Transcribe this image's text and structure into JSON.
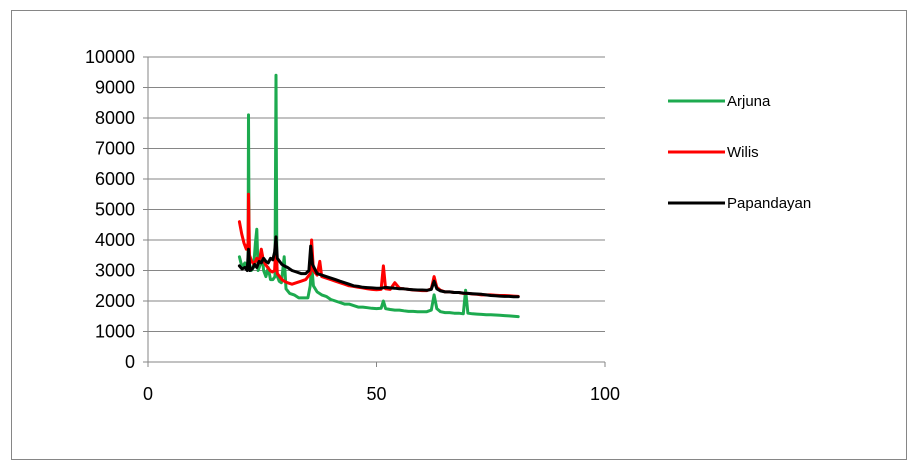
{
  "chart_data": {
    "type": "line",
    "title": "",
    "xlabel": "",
    "ylabel": "",
    "xlim": [
      0,
      100
    ],
    "ylim": [
      0,
      10000
    ],
    "x_ticks": [
      0,
      50,
      100
    ],
    "y_ticks": [
      0,
      1000,
      2000,
      3000,
      4000,
      5000,
      6000,
      7000,
      8000,
      9000,
      10000
    ],
    "grid": "horizontal",
    "legend_position": "right",
    "series": [
      {
        "name": "Arjuna",
        "color": "#1daa4f",
        "points": [
          [
            20,
            3450
          ],
          [
            20.6,
            3100
          ],
          [
            21.2,
            3250
          ],
          [
            21.6,
            3050
          ],
          [
            21.9,
            3300
          ],
          [
            22,
            8100
          ],
          [
            22.15,
            3250
          ],
          [
            22.6,
            3000
          ],
          [
            23.1,
            3100
          ],
          [
            23.5,
            3900
          ],
          [
            23.8,
            4350
          ],
          [
            24.1,
            3000
          ],
          [
            24.6,
            3200
          ],
          [
            25.0,
            3500
          ],
          [
            25.3,
            3000
          ],
          [
            25.8,
            2800
          ],
          [
            26.3,
            3100
          ],
          [
            26.8,
            2700
          ],
          [
            27.3,
            2700
          ],
          [
            27.8,
            2800
          ],
          [
            28,
            9400
          ],
          [
            28.2,
            2850
          ],
          [
            28.7,
            2650
          ],
          [
            29.2,
            2600
          ],
          [
            29.8,
            3450
          ],
          [
            30.2,
            2400
          ],
          [
            31,
            2250
          ],
          [
            32,
            2200
          ],
          [
            33,
            2100
          ],
          [
            34,
            2100
          ],
          [
            35,
            2100
          ],
          [
            35.5,
            2500
          ],
          [
            35.8,
            3200
          ],
          [
            36.2,
            2500
          ],
          [
            37,
            2300
          ],
          [
            38,
            2200
          ],
          [
            39,
            2150
          ],
          [
            40,
            2050
          ],
          [
            41,
            2000
          ],
          [
            42,
            1950
          ],
          [
            43,
            1900
          ],
          [
            44,
            1900
          ],
          [
            45,
            1850
          ],
          [
            46,
            1800
          ],
          [
            47,
            1800
          ],
          [
            48,
            1780
          ],
          [
            49,
            1760
          ],
          [
            50,
            1750
          ],
          [
            51,
            1760
          ],
          [
            51.5,
            2000
          ],
          [
            52,
            1750
          ],
          [
            53,
            1720
          ],
          [
            54,
            1700
          ],
          [
            55,
            1700
          ],
          [
            56,
            1680
          ],
          [
            57,
            1660
          ],
          [
            58,
            1660
          ],
          [
            59,
            1650
          ],
          [
            60,
            1650
          ],
          [
            61,
            1650
          ],
          [
            62,
            1700
          ],
          [
            62.6,
            2200
          ],
          [
            63.2,
            1750
          ],
          [
            64,
            1650
          ],
          [
            65,
            1620
          ],
          [
            66,
            1620
          ],
          [
            67,
            1600
          ],
          [
            68,
            1600
          ],
          [
            69,
            1580
          ],
          [
            69.5,
            2350
          ],
          [
            70,
            1600
          ],
          [
            71,
            1580
          ],
          [
            72,
            1570
          ],
          [
            73,
            1560
          ],
          [
            74,
            1550
          ],
          [
            75,
            1550
          ],
          [
            76,
            1540
          ],
          [
            77,
            1530
          ],
          [
            78,
            1520
          ],
          [
            79,
            1510
          ],
          [
            80,
            1500
          ],
          [
            81,
            1490
          ]
        ]
      },
      {
        "name": "Wilis",
        "color": "#ff0000",
        "points": [
          [
            20,
            4600
          ],
          [
            20.5,
            4200
          ],
          [
            21,
            3900
          ],
          [
            21.5,
            3700
          ],
          [
            21.9,
            3900
          ],
          [
            22,
            5500
          ],
          [
            22.2,
            3500
          ],
          [
            22.7,
            3300
          ],
          [
            23.2,
            3200
          ],
          [
            23.8,
            3400
          ],
          [
            24.3,
            3250
          ],
          [
            24.8,
            3700
          ],
          [
            25.2,
            3350
          ],
          [
            25.7,
            3200
          ],
          [
            26.2,
            3100
          ],
          [
            26.7,
            3000
          ],
          [
            27.2,
            2950
          ],
          [
            27.7,
            3000
          ],
          [
            28,
            3900
          ],
          [
            28.3,
            2900
          ],
          [
            28.8,
            2800
          ],
          [
            29.3,
            2700
          ],
          [
            29.8,
            2650
          ],
          [
            30.5,
            2600
          ],
          [
            31.5,
            2550
          ],
          [
            32.5,
            2600
          ],
          [
            33.5,
            2650
          ],
          [
            34.5,
            2700
          ],
          [
            35.5,
            2900
          ],
          [
            35.8,
            4000
          ],
          [
            36.2,
            3000
          ],
          [
            37,
            2850
          ],
          [
            37.6,
            3300
          ],
          [
            38,
            2800
          ],
          [
            39,
            2750
          ],
          [
            40,
            2700
          ],
          [
            41,
            2650
          ],
          [
            42,
            2600
          ],
          [
            43,
            2550
          ],
          [
            44,
            2500
          ],
          [
            45,
            2480
          ],
          [
            46,
            2450
          ],
          [
            47,
            2430
          ],
          [
            48,
            2400
          ],
          [
            49,
            2380
          ],
          [
            50,
            2370
          ],
          [
            51,
            2380
          ],
          [
            51.5,
            3150
          ],
          [
            52,
            2400
          ],
          [
            53,
            2380
          ],
          [
            54,
            2600
          ],
          [
            55,
            2420
          ],
          [
            56,
            2400
          ],
          [
            57,
            2380
          ],
          [
            58,
            2360
          ],
          [
            59,
            2350
          ],
          [
            60,
            2340
          ],
          [
            61,
            2340
          ],
          [
            62,
            2400
          ],
          [
            62.6,
            2800
          ],
          [
            63.2,
            2450
          ],
          [
            64,
            2350
          ],
          [
            65,
            2300
          ],
          [
            66,
            2300
          ],
          [
            67,
            2280
          ],
          [
            68,
            2280
          ],
          [
            69,
            2250
          ],
          [
            70,
            2250
          ],
          [
            71,
            2230
          ],
          [
            72,
            2220
          ],
          [
            73,
            2200
          ],
          [
            74,
            2200
          ],
          [
            75,
            2200
          ],
          [
            76,
            2190
          ],
          [
            77,
            2180
          ],
          [
            78,
            2180
          ],
          [
            79,
            2170
          ],
          [
            80,
            2160
          ],
          [
            81,
            2150
          ]
        ]
      },
      {
        "name": "Papandayan",
        "color": "#000000",
        "points": [
          [
            20,
            3150
          ],
          [
            20.6,
            3050
          ],
          [
            21.2,
            3100
          ],
          [
            21.7,
            3000
          ],
          [
            22,
            3700
          ],
          [
            22.3,
            3000
          ],
          [
            22.8,
            3050
          ],
          [
            23.3,
            3200
          ],
          [
            23.8,
            3100
          ],
          [
            24.3,
            3300
          ],
          [
            24.8,
            3250
          ],
          [
            25.3,
            3400
          ],
          [
            25.8,
            3300
          ],
          [
            26.3,
            3250
          ],
          [
            26.8,
            3400
          ],
          [
            27.3,
            3350
          ],
          [
            27.7,
            3600
          ],
          [
            28,
            4100
          ],
          [
            28.3,
            3400
          ],
          [
            28.8,
            3300
          ],
          [
            29.3,
            3200
          ],
          [
            29.8,
            3150
          ],
          [
            30.5,
            3100
          ],
          [
            31.5,
            3000
          ],
          [
            32.5,
            2950
          ],
          [
            33.5,
            2900
          ],
          [
            34.5,
            2900
          ],
          [
            35.2,
            3000
          ],
          [
            35.6,
            3800
          ],
          [
            36,
            3200
          ],
          [
            37,
            2900
          ],
          [
            38,
            2850
          ],
          [
            39,
            2800
          ],
          [
            40,
            2750
          ],
          [
            41,
            2700
          ],
          [
            42,
            2650
          ],
          [
            43,
            2600
          ],
          [
            44,
            2550
          ],
          [
            45,
            2500
          ],
          [
            46,
            2480
          ],
          [
            47,
            2450
          ],
          [
            48,
            2440
          ],
          [
            49,
            2430
          ],
          [
            50,
            2420
          ],
          [
            51,
            2420
          ],
          [
            52,
            2450
          ],
          [
            53,
            2430
          ],
          [
            54,
            2420
          ],
          [
            55,
            2400
          ],
          [
            56,
            2400
          ],
          [
            57,
            2380
          ],
          [
            58,
            2370
          ],
          [
            59,
            2360
          ],
          [
            60,
            2360
          ],
          [
            61,
            2350
          ],
          [
            62,
            2380
          ],
          [
            62.6,
            2650
          ],
          [
            63.2,
            2400
          ],
          [
            64,
            2330
          ],
          [
            65,
            2300
          ],
          [
            66,
            2300
          ],
          [
            67,
            2280
          ],
          [
            68,
            2280
          ],
          [
            69,
            2260
          ],
          [
            70,
            2250
          ],
          [
            71,
            2240
          ],
          [
            72,
            2230
          ],
          [
            73,
            2220
          ],
          [
            74,
            2200
          ],
          [
            75,
            2180
          ],
          [
            76,
            2170
          ],
          [
            77,
            2160
          ],
          [
            78,
            2150
          ],
          [
            79,
            2150
          ],
          [
            80,
            2140
          ],
          [
            81,
            2140
          ]
        ]
      }
    ]
  }
}
